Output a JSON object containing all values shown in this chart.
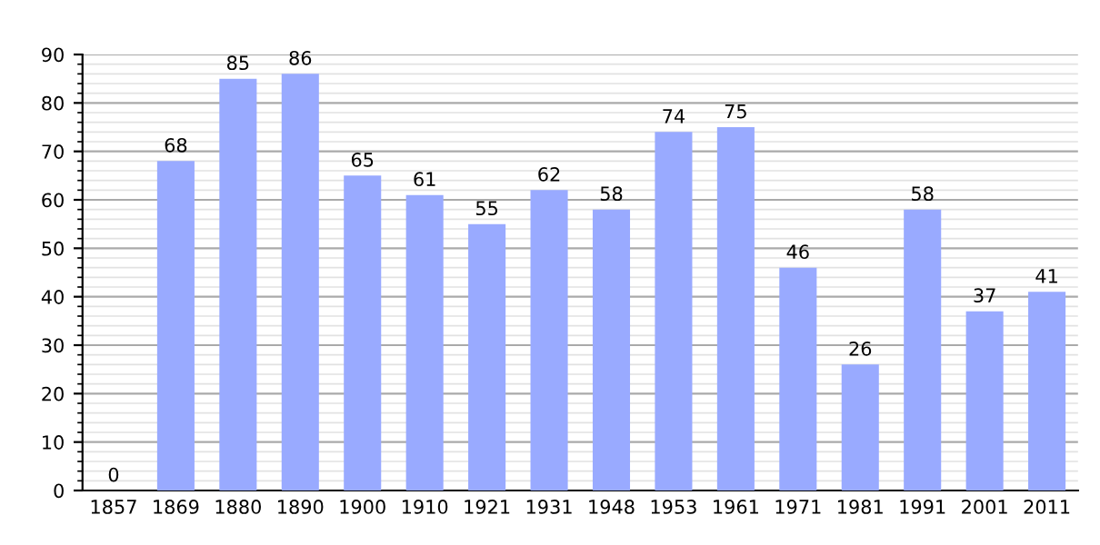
{
  "chart_data": {
    "type": "bar",
    "categories": [
      "1857",
      "1869",
      "1880",
      "1890",
      "1900",
      "1910",
      "1921",
      "1931",
      "1948",
      "1953",
      "1961",
      "1971",
      "1981",
      "1991",
      "2001",
      "2011"
    ],
    "values": [
      0,
      68,
      85,
      86,
      65,
      61,
      55,
      62,
      58,
      74,
      75,
      46,
      26,
      58,
      37,
      41
    ],
    "color": "#99aaff",
    "ylim": [
      0,
      90
    ],
    "yticks": [
      0,
      10,
      20,
      30,
      40,
      50,
      60,
      70,
      80,
      90
    ],
    "grid": "y",
    "data_labels": true
  }
}
